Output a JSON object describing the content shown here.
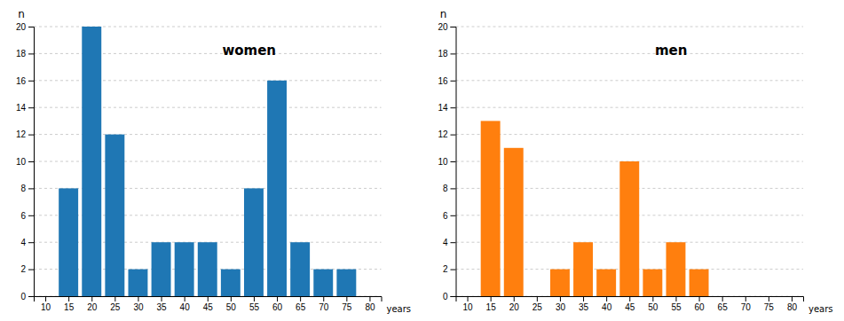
{
  "chart_data": [
    {
      "type": "bar",
      "title": "women",
      "x": [
        10,
        15,
        20,
        25,
        30,
        35,
        40,
        45,
        50,
        55,
        60,
        65,
        70,
        75,
        80
      ],
      "values": [
        0,
        8,
        20,
        12,
        2,
        4,
        4,
        4,
        2,
        8,
        16,
        4,
        2,
        2,
        0
      ],
      "xlim": [
        7.5,
        82.5
      ],
      "xticks": [
        10,
        15,
        20,
        25,
        30,
        35,
        40,
        45,
        50,
        55,
        60,
        65,
        70,
        75,
        80
      ],
      "ylim": [
        0,
        20
      ],
      "yticks": [
        0,
        2,
        4,
        6,
        8,
        10,
        12,
        14,
        16,
        18,
        20
      ],
      "xlabel": "years",
      "ylabel": "n",
      "grid": true
    },
    {
      "type": "bar",
      "title": "men",
      "x": [
        10,
        15,
        20,
        25,
        30,
        35,
        40,
        45,
        50,
        55,
        60,
        65,
        70,
        75,
        80
      ],
      "values": [
        0,
        13,
        11,
        0,
        2,
        4,
        2,
        10,
        2,
        4,
        2,
        0,
        0,
        0,
        0
      ],
      "xlim": [
        7.5,
        82.5
      ],
      "xticks": [
        10,
        15,
        20,
        25,
        30,
        35,
        40,
        45,
        50,
        55,
        60,
        65,
        70,
        75,
        80
      ],
      "ylim": [
        0,
        20
      ],
      "yticks": [
        0,
        2,
        4,
        6,
        8,
        10,
        12,
        14,
        16,
        18,
        20
      ],
      "xlabel": "years",
      "ylabel": "n",
      "grid": true
    }
  ]
}
